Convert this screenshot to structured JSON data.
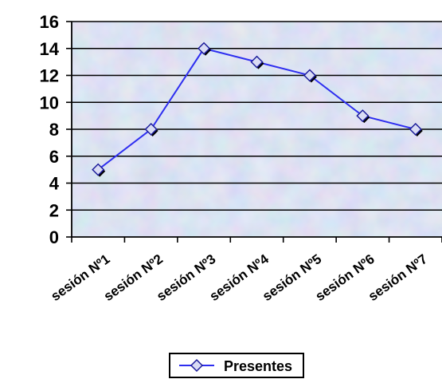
{
  "chart_data": {
    "type": "line",
    "categories": [
      "sesión Nº1",
      "sesión Nº2",
      "sesión Nº3",
      "sesión Nº4",
      "sesión Nº5",
      "sesión Nº6",
      "sesión Nº7"
    ],
    "series": [
      {
        "name": "Presentes",
        "values": [
          5,
          8,
          14,
          13,
          12,
          9,
          8
        ],
        "color": "#2e2ef0"
      }
    ],
    "ylim": [
      0,
      16
    ],
    "yticks": [
      0,
      2,
      4,
      6,
      8,
      10,
      12,
      14,
      16
    ],
    "grid": true,
    "legend_position": "bottom",
    "plot_background": "#c9d8ee",
    "marker": "diamond"
  }
}
